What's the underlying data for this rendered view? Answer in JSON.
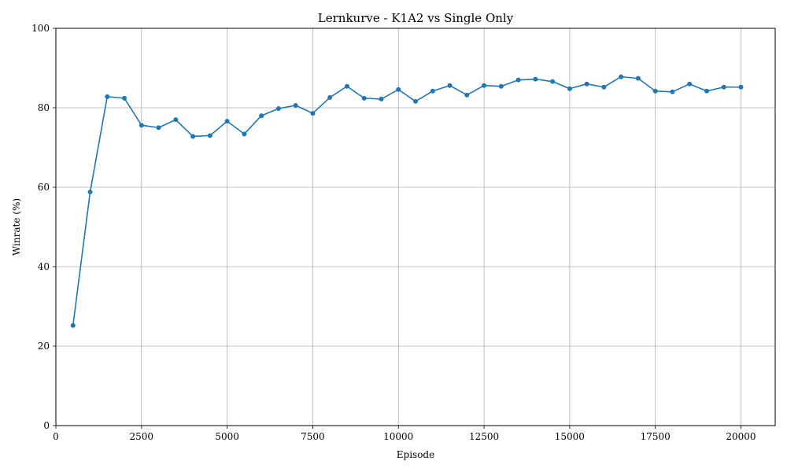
{
  "chart_data": {
    "type": "line",
    "title": "Lernkurve - K1A2 vs Single Only",
    "xlabel": "Episode",
    "ylabel": "Winrate (%)",
    "xlim": [
      0,
      21000
    ],
    "ylim": [
      0,
      100
    ],
    "x_ticks": [
      "0",
      "2500",
      "5000",
      "7500",
      "10000",
      "12500",
      "15000",
      "17500",
      "20000"
    ],
    "y_ticks": [
      "0",
      "20",
      "40",
      "60",
      "80",
      "100"
    ],
    "grid": true,
    "series": [
      {
        "color": "#1f77b4",
        "x": [
          500,
          1000,
          1500,
          2000,
          2500,
          3000,
          3500,
          4000,
          4500,
          5000,
          5500,
          6000,
          6500,
          7000,
          7500,
          8000,
          8500,
          9000,
          9500,
          10000,
          10500,
          11000,
          11500,
          12000,
          12500,
          13000,
          13500,
          14000,
          14500,
          15000,
          15500,
          16000,
          16500,
          17000,
          17500,
          18000,
          18500,
          19000,
          19500,
          20000
        ],
        "y": [
          25.2,
          58.8,
          82.8,
          82.4,
          75.6,
          75.0,
          77.0,
          72.8,
          73.0,
          76.6,
          73.4,
          78.0,
          79.8,
          80.6,
          78.6,
          82.6,
          85.4,
          82.4,
          82.2,
          84.6,
          81.6,
          84.2,
          85.6,
          83.2,
          85.6,
          85.4,
          87.0,
          87.2,
          86.6,
          84.8,
          86.0,
          85.2,
          87.8,
          87.4,
          84.2,
          84.0,
          86.0,
          84.2,
          85.2,
          85.2
        ]
      }
    ]
  }
}
